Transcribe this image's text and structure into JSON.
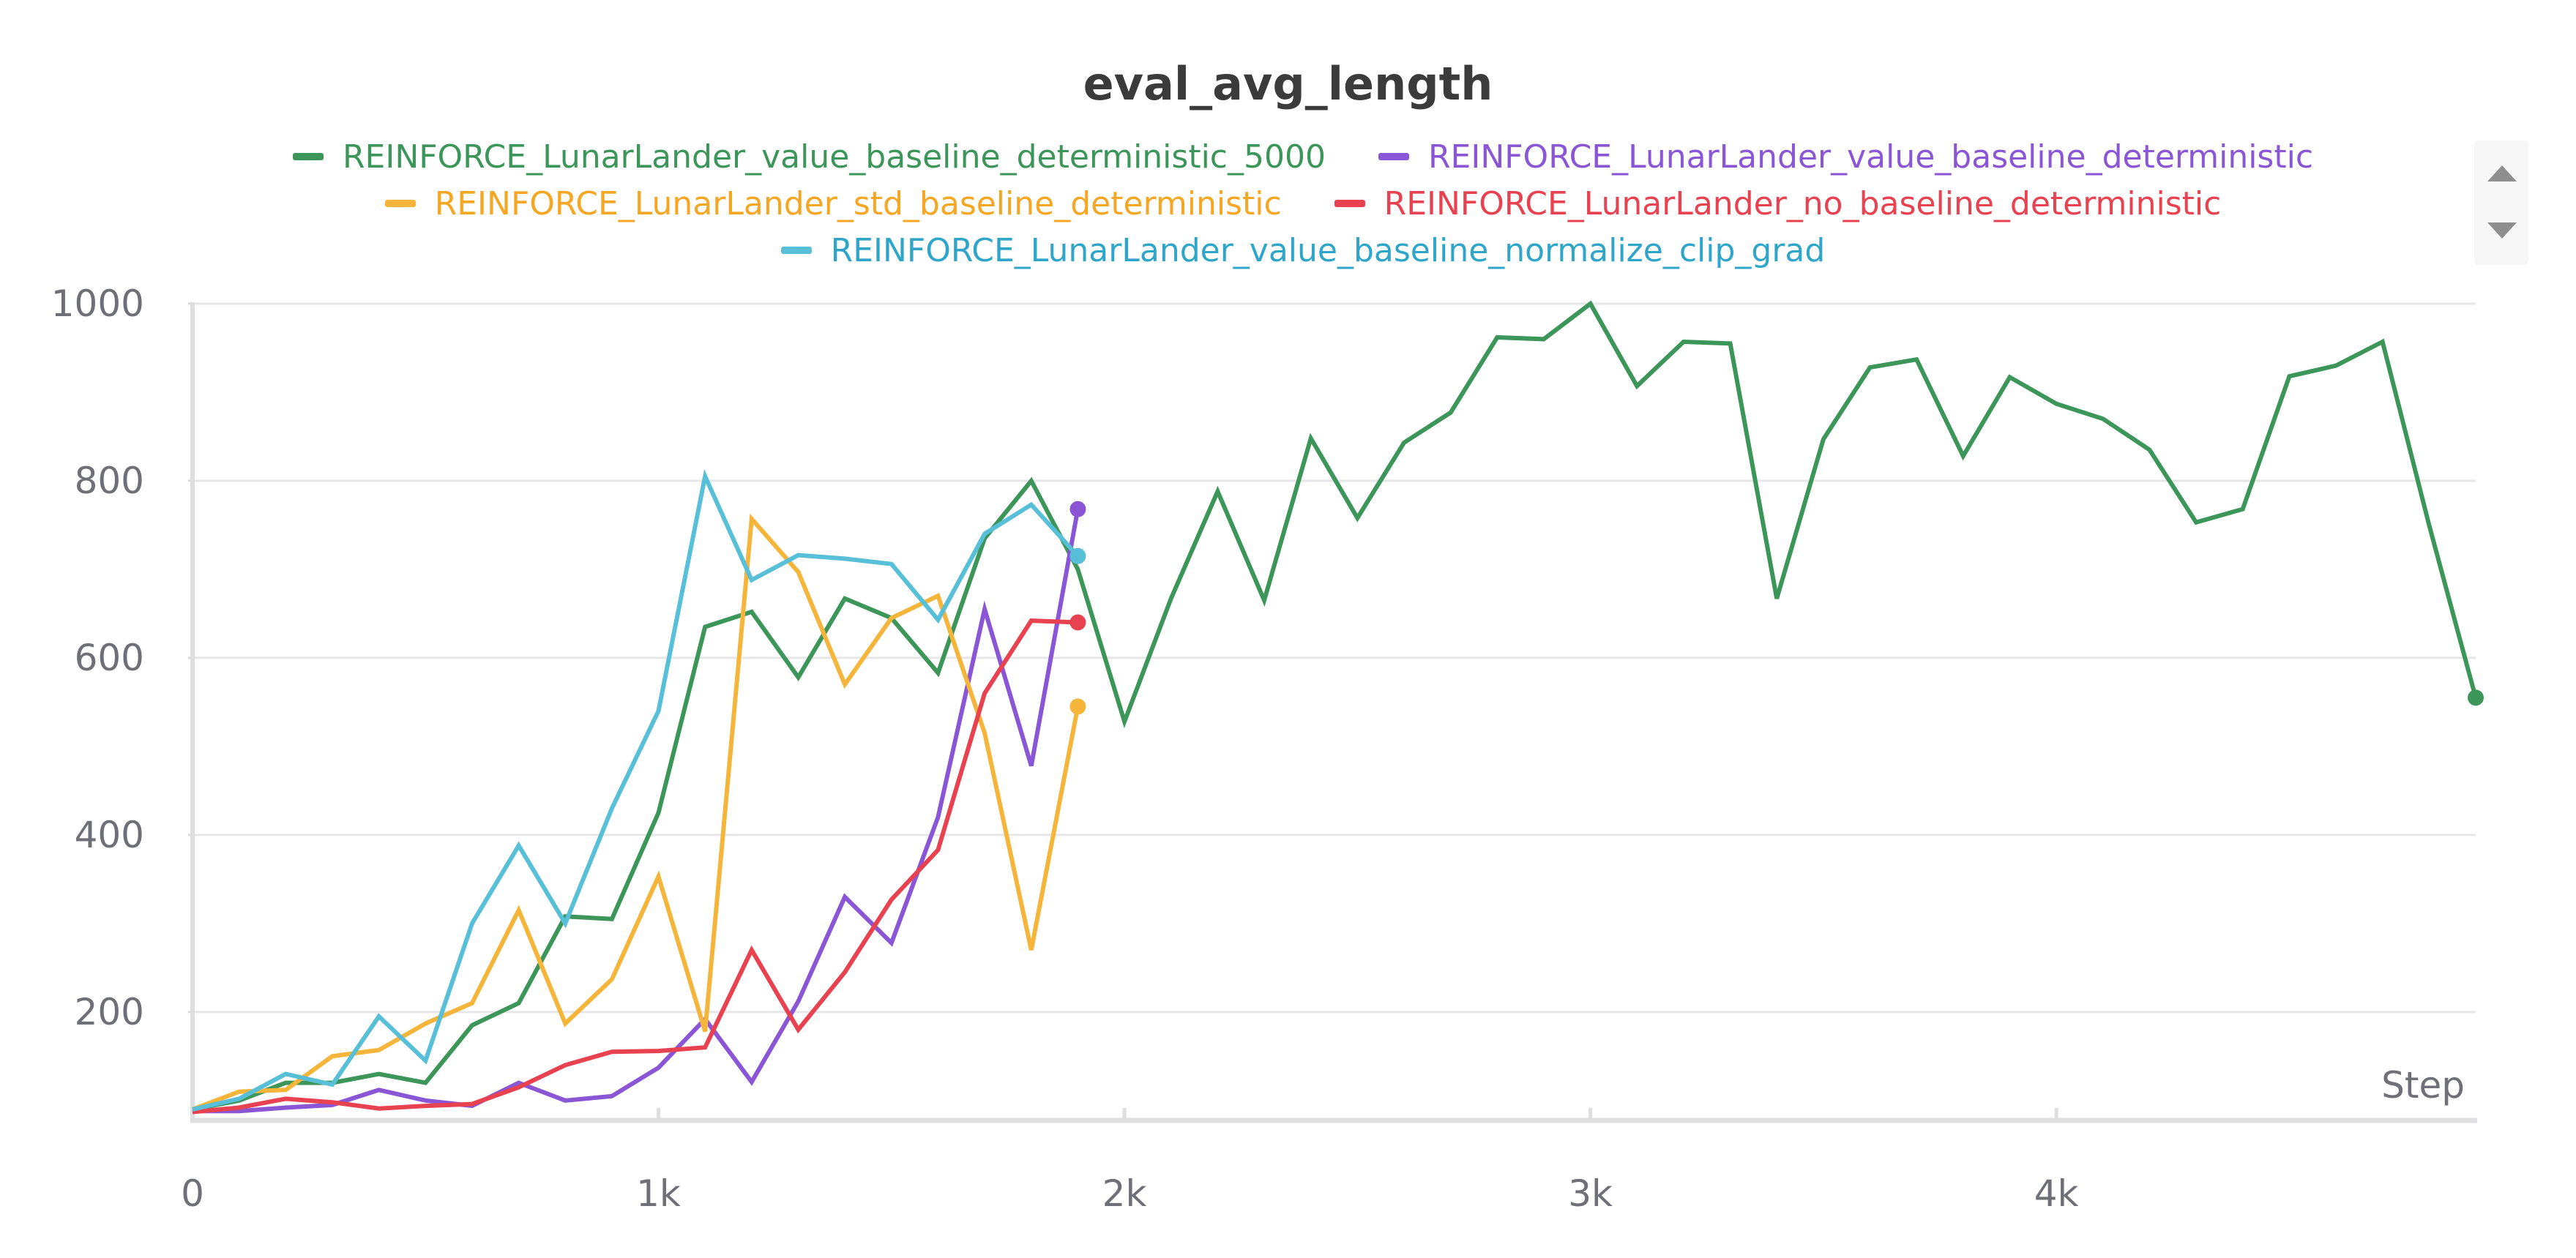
{
  "chart_data": {
    "type": "line",
    "title": "eval_avg_length",
    "xlabel": "Step",
    "ylabel": "",
    "xlim": [
      0,
      4900
    ],
    "ylim": [
      80,
      1000
    ],
    "grid": true,
    "legend_position": "top-center",
    "y_ticks": [
      {
        "value": 200,
        "label": "200"
      },
      {
        "value": 400,
        "label": "400"
      },
      {
        "value": 600,
        "label": "600"
      },
      {
        "value": 800,
        "label": "800"
      },
      {
        "value": 1000,
        "label": "1000"
      }
    ],
    "x_ticks": [
      {
        "value": 0,
        "label": "0"
      },
      {
        "value": 1000,
        "label": "1k"
      },
      {
        "value": 2000,
        "label": "2k"
      },
      {
        "value": 3000,
        "label": "3k"
      },
      {
        "value": 4000,
        "label": "4k"
      }
    ],
    "series": [
      {
        "name": "REINFORCE_LunarLander_value_baseline_deterministic_5000",
        "color": "#3d9659",
        "x": [
          0,
          100,
          200,
          300,
          400,
          500,
          600,
          700,
          800,
          900,
          1000,
          1100,
          1200,
          1300,
          1400,
          1500,
          1600,
          1700,
          1800,
          1900,
          2000,
          2100,
          2200,
          2300,
          2400,
          2500,
          2600,
          2700,
          2800,
          2900,
          3000,
          3100,
          3200,
          3300,
          3400,
          3500,
          3600,
          3700,
          3800,
          3900,
          4000,
          4100,
          4200,
          4300,
          4400,
          4500,
          4600,
          4700,
          4800,
          4900
        ],
        "y": [
          90,
          100,
          120,
          120,
          130,
          120,
          185,
          210,
          308,
          305,
          425,
          635,
          652,
          578,
          667,
          645,
          583,
          735,
          800,
          700,
          528,
          667,
          788,
          665,
          848,
          758,
          843,
          877,
          962,
          960,
          1000,
          907,
          957,
          955,
          667,
          847,
          928,
          937,
          828,
          917,
          887,
          870,
          835,
          753,
          768,
          918,
          930,
          957,
          750,
          555
        ]
      },
      {
        "name": "REINFORCE_LunarLander_value_baseline_deterministic",
        "color": "#8a56d6",
        "x": [
          0,
          100,
          200,
          300,
          400,
          500,
          600,
          700,
          800,
          900,
          1000,
          1100,
          1200,
          1300,
          1400,
          1500,
          1600,
          1700,
          1800,
          1900
        ],
        "y": [
          88,
          88,
          92,
          95,
          112,
          100,
          94,
          120,
          100,
          105,
          137,
          192,
          121,
          212,
          330,
          278,
          420,
          655,
          478,
          768
        ]
      },
      {
        "name": "REINFORCE_LunarLander_std_baseline_deterministic",
        "color": "#f5b53a",
        "x": [
          0,
          100,
          200,
          300,
          400,
          500,
          600,
          700,
          800,
          900,
          1000,
          1100,
          1200,
          1300,
          1400,
          1500,
          1600,
          1700,
          1800,
          1900
        ],
        "y": [
          90,
          110,
          112,
          150,
          157,
          187,
          210,
          315,
          187,
          237,
          353,
          178,
          757,
          697,
          570,
          645,
          670,
          515,
          270,
          545
        ]
      },
      {
        "name": "REINFORCE_LunarLander_no_baseline_deterministic",
        "color": "#e8414f",
        "x": [
          0,
          100,
          200,
          300,
          400,
          500,
          600,
          700,
          800,
          900,
          1000,
          1100,
          1200,
          1300,
          1400,
          1500,
          1600,
          1700,
          1800,
          1900
        ],
        "y": [
          87,
          92,
          102,
          98,
          91,
          94,
          96,
          115,
          140,
          155,
          156,
          160,
          270,
          180,
          245,
          327,
          383,
          560,
          642,
          640
        ]
      },
      {
        "name": "REINFORCE_LunarLander_value_baseline_normalize_clip_grad",
        "color": "#58bfd8",
        "x": [
          0,
          100,
          200,
          300,
          400,
          500,
          600,
          700,
          800,
          900,
          1000,
          1100,
          1200,
          1300,
          1400,
          1500,
          1600,
          1700,
          1800,
          1900
        ],
        "y": [
          90,
          102,
          130,
          118,
          195,
          145,
          300,
          388,
          300,
          430,
          540,
          805,
          688,
          716,
          712,
          706,
          643,
          740,
          773,
          715
        ]
      }
    ]
  },
  "legend": {
    "rows": [
      [
        {
          "label": "REINFORCE_LunarLander_value_baseline_deterministic_5000",
          "color": "#3d9659"
        },
        {
          "label": "REINFORCE_LunarLander_value_baseline_deterministic",
          "color": "#8a56d6"
        }
      ],
      [
        {
          "label": "REINFORCE_LunarLander_std_baseline_deterministic",
          "color": "#f5b53a"
        },
        {
          "label": "REINFORCE_LunarLander_no_baseline_deterministic",
          "color": "#e8414f"
        }
      ],
      [
        {
          "label": "REINFORCE_LunarLander_value_baseline_normalize_clip_grad",
          "color": "#58bfd8"
        }
      ]
    ]
  }
}
